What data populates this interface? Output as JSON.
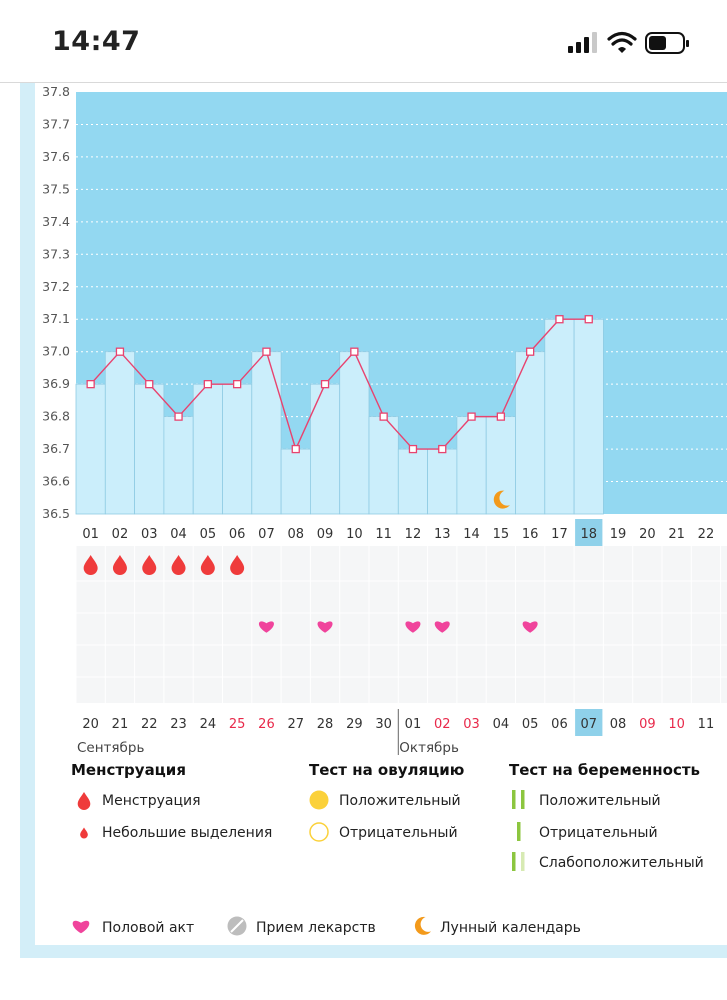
{
  "status_bar": {
    "time": "14:47"
  },
  "chart_data": {
    "type": "line",
    "title": "",
    "ylabel": "",
    "xlabel": "",
    "ylim": [
      36.5,
      37.8
    ],
    "y_ticks": [
      "37.8",
      "37.7",
      "37.6",
      "37.5",
      "37.4",
      "37.3",
      "37.2",
      "37.1",
      "37.0",
      "36.9",
      "36.8",
      "36.7",
      "36.6",
      "36.5"
    ],
    "cycle_days": [
      "01",
      "02",
      "03",
      "04",
      "05",
      "06",
      "07",
      "08",
      "09",
      "10",
      "11",
      "12",
      "13",
      "14",
      "15",
      "16",
      "17",
      "18",
      "19",
      "20",
      "21",
      "22"
    ],
    "today_cycle_day": "18",
    "temperatures": [
      36.9,
      37.0,
      36.9,
      36.8,
      36.9,
      36.9,
      37.0,
      36.7,
      36.9,
      37.0,
      36.8,
      36.7,
      36.7,
      36.8,
      36.8,
      37.0,
      37.1,
      37.1
    ],
    "dates": [
      "20",
      "21",
      "22",
      "23",
      "24",
      "25",
      "26",
      "27",
      "28",
      "29",
      "30",
      "01",
      "02",
      "03",
      "04",
      "05",
      "06",
      "07",
      "08",
      "09",
      "10",
      "11"
    ],
    "weekend_date_indices": [
      5,
      6,
      12,
      13,
      19,
      20
    ],
    "today_date": "07",
    "months": [
      {
        "label": "Сентябрь",
        "start_index": 0
      },
      {
        "label": "Октябрь",
        "start_index": 11
      }
    ],
    "menstruation_day_indices": [
      0,
      1,
      2,
      3,
      4,
      5
    ],
    "intercourse_day_indices": [
      6,
      8,
      11,
      12,
      15
    ],
    "moon_day_index": 14
  },
  "legend": {
    "menstruation": {
      "title": "Менструация",
      "items": [
        "Менструация",
        "Небольшие выделения"
      ]
    },
    "ovulation": {
      "title": "Тест на овуляцию",
      "items": [
        "Положительный",
        "Отрицательный"
      ]
    },
    "pregnancy": {
      "title": "Тест на беременность",
      "items": [
        "Положительный",
        "Отрицательный",
        "Слабоположительный"
      ]
    },
    "other": [
      "Половой акт",
      "Прием лекарств",
      "Лунный календарь"
    ]
  },
  "colors": {
    "chart_bg": "#93d8f1",
    "bar_fill": "#cbeefb",
    "bar_stroke": "#8fcbe3",
    "line": "#e8436f",
    "drop": "#ef3b3b",
    "heart": "#f0449c",
    "moon": "#f39a1b",
    "today": "#8fd1ea",
    "weekend": "#e8294a",
    "ovulation": "#fbd13a",
    "pregnancy": "#8cc63f",
    "pregnancy_faint": "#d7eab3",
    "pill": "#bdbdbd"
  }
}
